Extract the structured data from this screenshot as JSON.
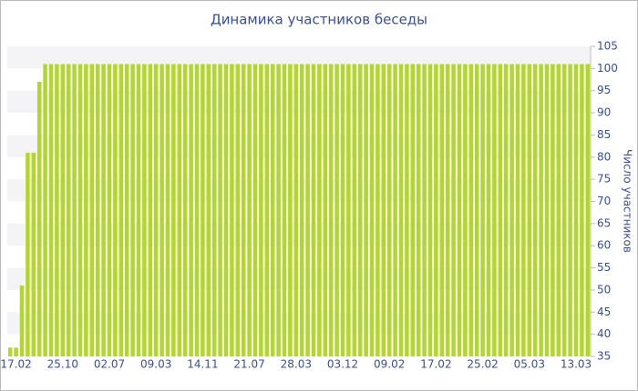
{
  "chart_data": {
    "type": "bar",
    "title": "Динамика участников беседы",
    "y_label": "Число участников",
    "categories": [
      null,
      "17.02",
      null,
      null,
      null,
      null,
      null,
      null,
      null,
      "25.10",
      null,
      null,
      null,
      null,
      null,
      null,
      null,
      "02.07",
      null,
      null,
      null,
      null,
      null,
      null,
      null,
      "09.03",
      null,
      null,
      null,
      null,
      null,
      null,
      null,
      "14.11",
      null,
      null,
      null,
      null,
      null,
      null,
      null,
      "21.07",
      null,
      null,
      null,
      null,
      null,
      null,
      null,
      "28.03",
      null,
      null,
      null,
      null,
      null,
      null,
      null,
      "03.12",
      null,
      null,
      null,
      null,
      null,
      null,
      null,
      "09.02",
      null,
      null,
      null,
      null,
      null,
      null,
      null,
      "17.02",
      null,
      null,
      null,
      null,
      null,
      null,
      null,
      "25.02",
      null,
      null,
      null,
      null,
      null,
      null,
      null,
      "05.03",
      null,
      null,
      null,
      null,
      null,
      null,
      null,
      "13.03",
      null,
      null
    ],
    "values": [
      37,
      37,
      51,
      81,
      81,
      97,
      101,
      101,
      101,
      101,
      101,
      101,
      101,
      101,
      101,
      101,
      101,
      101,
      101,
      101,
      101,
      101,
      101,
      101,
      101,
      101,
      101,
      101,
      101,
      101,
      101,
      101,
      101,
      101,
      101,
      101,
      101,
      101,
      101,
      101,
      101,
      101,
      101,
      101,
      101,
      101,
      101,
      101,
      101,
      101,
      101,
      101,
      101,
      101,
      101,
      101,
      101,
      101,
      101,
      101,
      101,
      101,
      101,
      101,
      101,
      101,
      101,
      101,
      101,
      101,
      101,
      101,
      101,
      101,
      101,
      101,
      101,
      101,
      101,
      101,
      101,
      101,
      101,
      101,
      101,
      101,
      101,
      101,
      101,
      101,
      101,
      101,
      101,
      101,
      101,
      101,
      101,
      101,
      101,
      101
    ],
    "color": "#b3d62c",
    "ylim": [
      35,
      105
    ],
    "yticks": [
      35,
      40,
      45,
      50,
      55,
      60,
      65,
      70,
      75,
      80,
      85,
      90,
      95,
      100,
      105
    ],
    "grid": true
  }
}
